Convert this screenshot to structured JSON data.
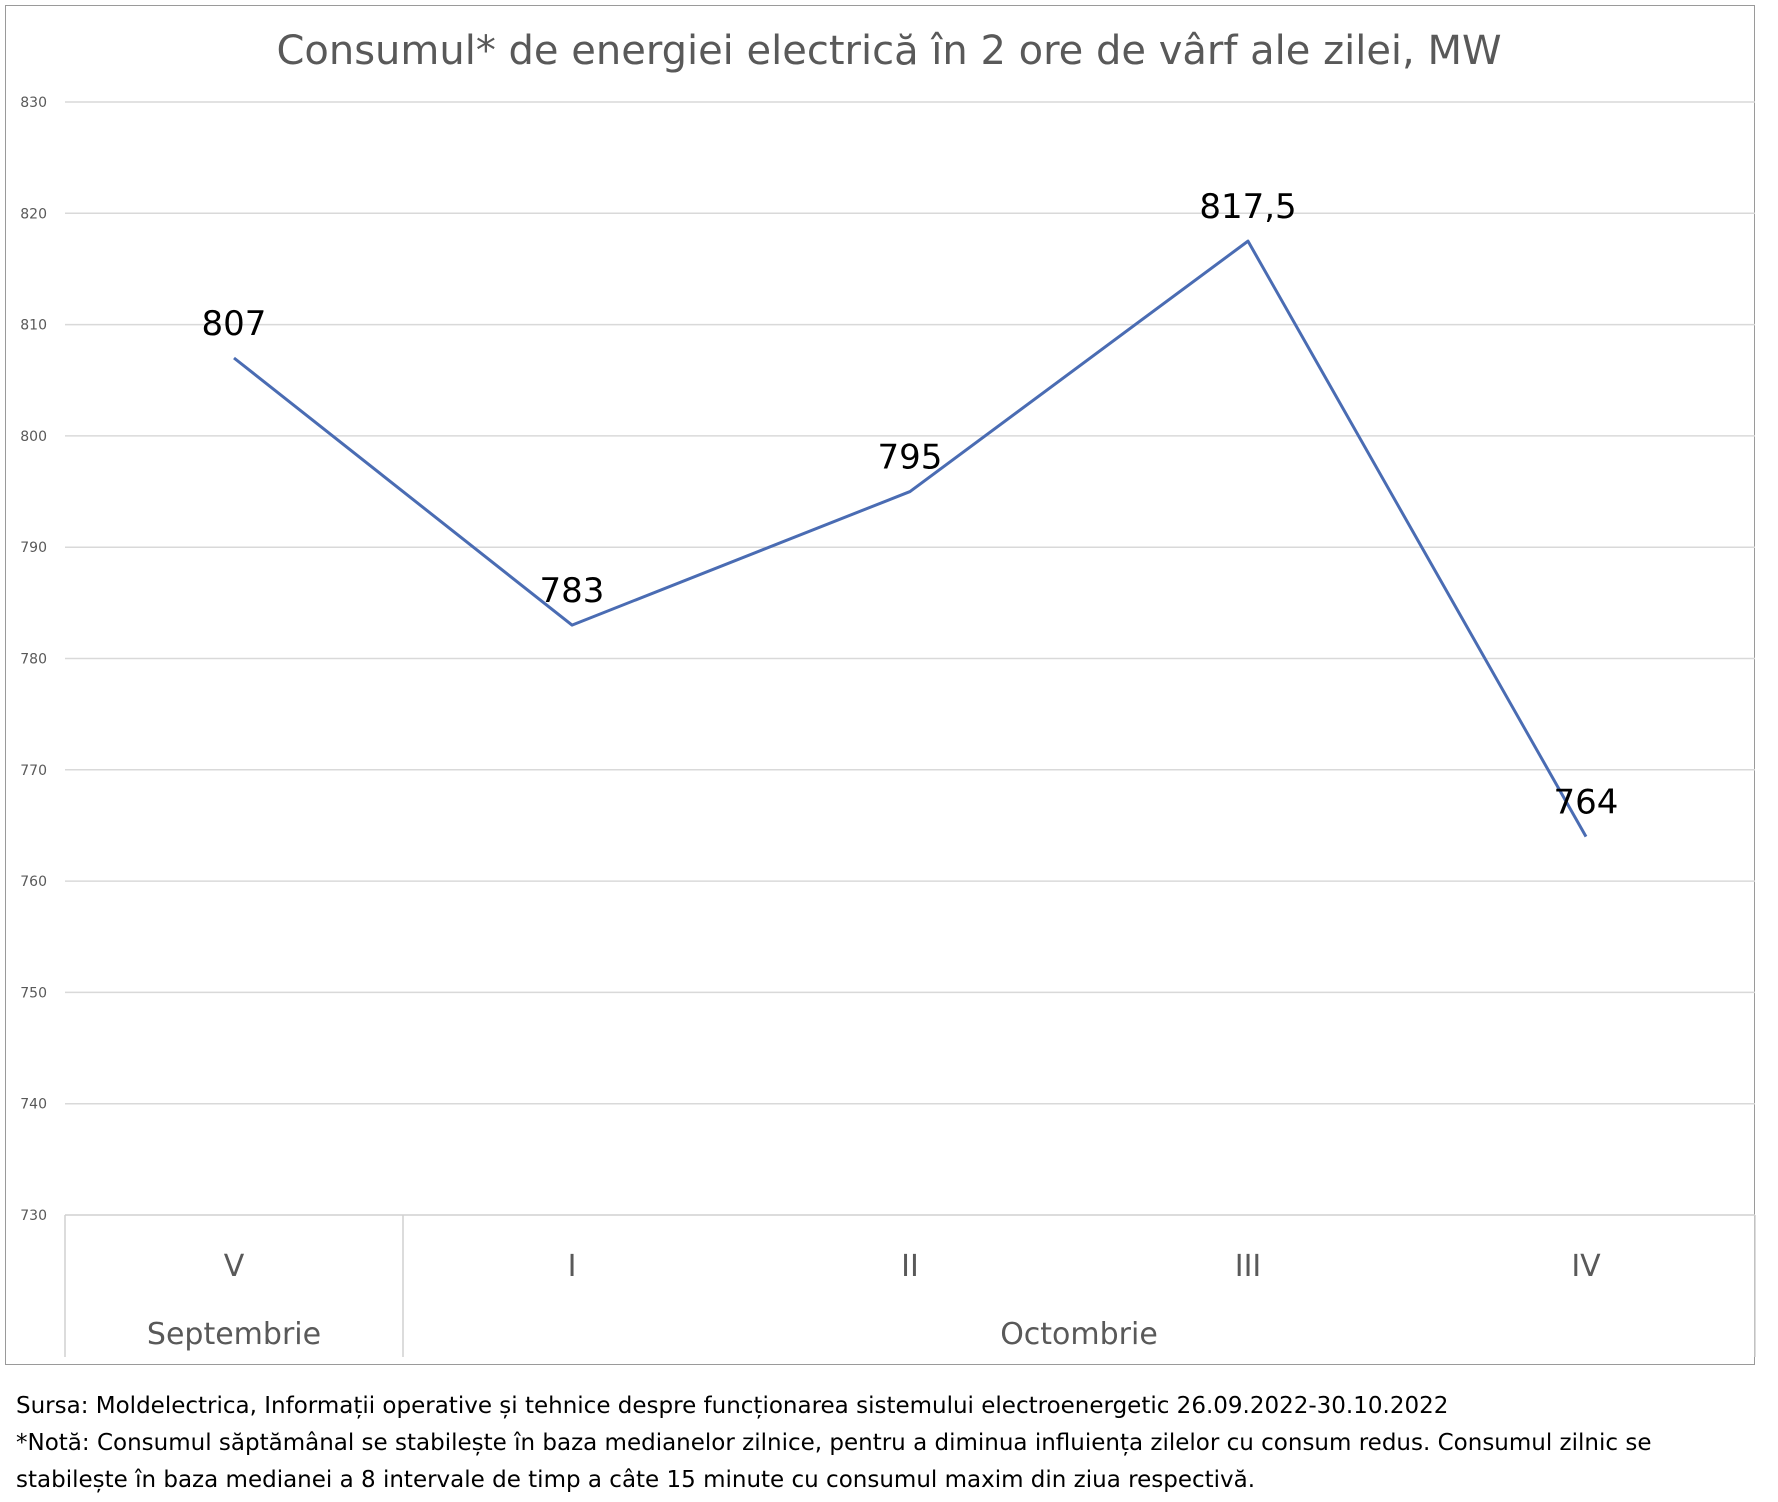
{
  "chart_data": {
    "type": "line",
    "title": "Consumul* de energiei electrică în 2 ore de vârf ale zilei, MW",
    "xlabel": "",
    "ylabel": "",
    "categories": [
      "V",
      "I",
      "II",
      "III",
      "IV"
    ],
    "category_groups": [
      {
        "label": "Septembrie",
        "categories": [
          "V"
        ]
      },
      {
        "label": "Octombrie",
        "categories": [
          "I",
          "II",
          "III",
          "IV"
        ]
      }
    ],
    "series": [
      {
        "values": [
          807,
          783,
          795,
          817.5,
          764
        ],
        "data_labels": [
          "807",
          "783",
          "795",
          "817,5",
          "764"
        ],
        "color": "#4a6cb3"
      }
    ],
    "ylim": [
      730,
      830
    ],
    "yticks": [
      730,
      740,
      750,
      760,
      770,
      780,
      790,
      800,
      810,
      820,
      830
    ],
    "grid": true,
    "legend": "none"
  },
  "footer": {
    "source": "Sursa: Moldelectrica, Informații operative și tehnice despre funcționarea sistemului electroenergetic 26.09.2022-30.10.2022",
    "note_line1": "*Notă: Consumul săptămânal se stabilește în baza medianelor zilnice, pentru a diminua influiența zilelor cu consum redus. Consumul zilnic se",
    "note_line2": "stabilește în baza medianei a 8 intervale de timp a câte 15 minute cu consumul maxim din ziua respectivă."
  }
}
